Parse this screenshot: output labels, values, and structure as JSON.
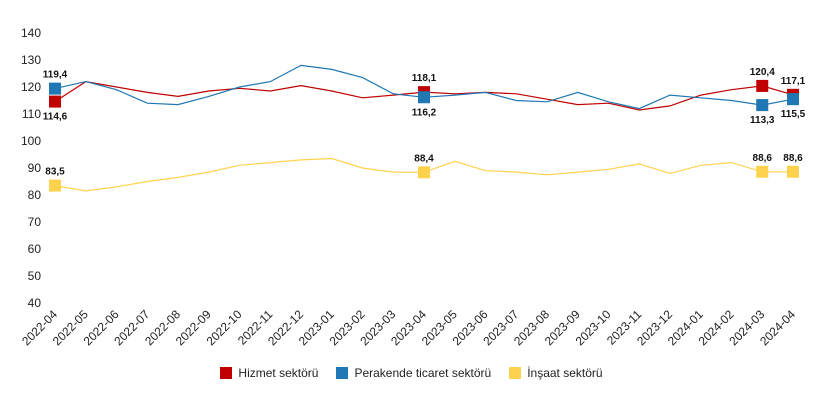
{
  "chart_data": {
    "type": "line",
    "title": "",
    "xlabel": "",
    "ylabel": "",
    "ylim": [
      40,
      140
    ],
    "yticks": [
      "140",
      "130",
      "120",
      "110",
      "100",
      "90",
      "80",
      "70",
      "60",
      "50",
      "40"
    ],
    "grid": false,
    "categories": [
      "2022-04",
      "2022-05",
      "2022-06",
      "2022-07",
      "2022-08",
      "2022-09",
      "2022-10",
      "2022-11",
      "2022-12",
      "2023-01",
      "2023-02",
      "2023-03",
      "2023-04",
      "2023-05",
      "2023-06",
      "2023-07",
      "2023-08",
      "2023-09",
      "2023-10",
      "2023-11",
      "2023-12",
      "2024-01",
      "2024-02",
      "2024-03",
      "2024-04"
    ],
    "series": [
      {
        "name": "Hizmet sektörü",
        "color": "#c00000",
        "values": [
          114.6,
          122.0,
          120.0,
          118.0,
          116.5,
          118.5,
          119.5,
          118.5,
          120.5,
          118.5,
          116.0,
          117.0,
          118.1,
          117.5,
          118.0,
          117.5,
          115.5,
          113.5,
          114.0,
          111.5,
          113.0,
          117.0,
          119.0,
          120.4,
          117.1
        ],
        "labeled": [
          {
            "index": 0,
            "label": "114,6",
            "pos": "below"
          },
          {
            "index": 12,
            "label": "118,1",
            "pos": "above"
          },
          {
            "index": 23,
            "label": "120,4",
            "pos": "above"
          },
          {
            "index": 24,
            "label": "117,1",
            "pos": "above"
          }
        ]
      },
      {
        "name": "Perakende ticaret sektörü",
        "color": "#1f77b4",
        "values": [
          119.4,
          122.0,
          119.0,
          114.0,
          113.5,
          116.5,
          120.0,
          122.0,
          128.0,
          126.5,
          123.5,
          117.5,
          116.2,
          117.0,
          118.0,
          115.0,
          114.5,
          118.0,
          114.5,
          112.0,
          117.0,
          116.0,
          115.0,
          113.3,
          115.5
        ],
        "labeled": [
          {
            "index": 0,
            "label": "119,4",
            "pos": "above"
          },
          {
            "index": 12,
            "label": "116,2",
            "pos": "below"
          },
          {
            "index": 23,
            "label": "113,3",
            "pos": "below"
          },
          {
            "index": 24,
            "label": "115,5",
            "pos": "below"
          }
        ]
      },
      {
        "name": "İnşaat sektörü",
        "color": "#ffd24d",
        "values": [
          83.5,
          81.5,
          83.0,
          85.0,
          86.5,
          88.5,
          91.0,
          92.0,
          93.0,
          93.5,
          90.0,
          88.5,
          88.4,
          92.5,
          89.0,
          88.5,
          87.5,
          88.5,
          89.5,
          91.5,
          88.0,
          91.0,
          92.0,
          88.6,
          88.6
        ],
        "labeled": [
          {
            "index": 0,
            "label": "83,5",
            "pos": "above"
          },
          {
            "index": 12,
            "label": "88,4",
            "pos": "above"
          },
          {
            "index": 23,
            "label": "88,6",
            "pos": "above"
          },
          {
            "index": 24,
            "label": "88,6",
            "pos": "above"
          }
        ]
      }
    ],
    "legend": {
      "position": "bottom-center",
      "items": [
        "Hizmet sektörü",
        "Perakende ticaret sektörü",
        "İnşaat sektörü"
      ]
    }
  }
}
